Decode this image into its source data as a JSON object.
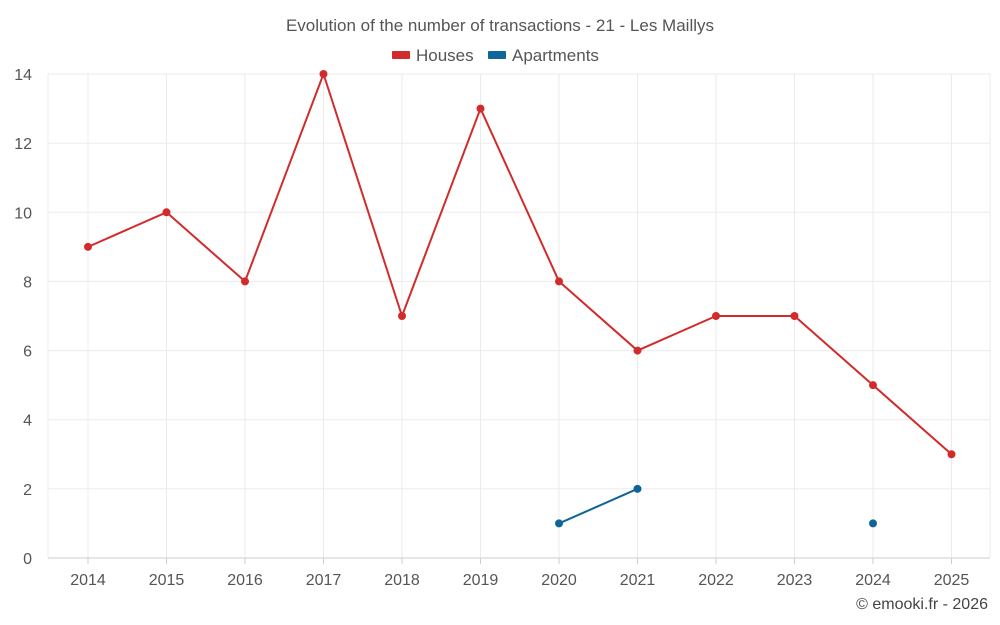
{
  "chart_data": {
    "type": "line",
    "title": "Evolution of the number of transactions - 21 - Les Maillys",
    "categories": [
      "2014",
      "2015",
      "2016",
      "2017",
      "2018",
      "2019",
      "2020",
      "2021",
      "2022",
      "2023",
      "2024",
      "2025"
    ],
    "ylim": [
      0,
      14
    ],
    "yticks": [
      0,
      2,
      4,
      6,
      8,
      10,
      12,
      14
    ],
    "grid": true,
    "legend_position": "top-center",
    "series": [
      {
        "name": "Houses",
        "color": "#d22b2b",
        "values": [
          9,
          10,
          8,
          14,
          7,
          13,
          8,
          6,
          7,
          7,
          5,
          3
        ]
      },
      {
        "name": "Apartments",
        "color": "#0f6499",
        "values": [
          null,
          null,
          null,
          null,
          null,
          null,
          1,
          2,
          null,
          null,
          1,
          null
        ]
      }
    ],
    "xlabel": "",
    "ylabel": ""
  },
  "credit": "© emooki.fr - 2026"
}
